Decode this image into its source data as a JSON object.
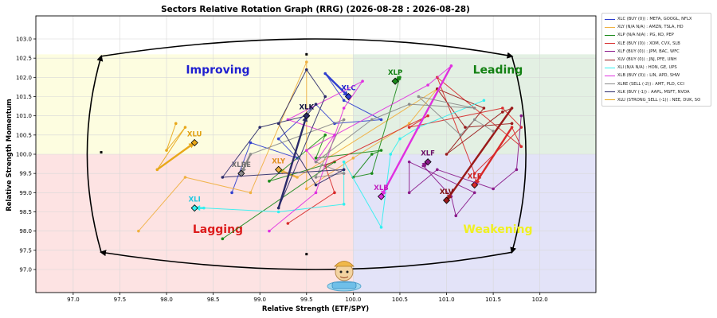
{
  "chart_data": {
    "type": "scatter",
    "title": "Sectors Relative Rotation Graph (RRG) (2026-08-28 : 2026-08-28)",
    "xlabel": "Relative Strength (ETF/SPY)",
    "ylabel": "Relative Strength Momentum",
    "xlim": [
      96.6,
      102.6
    ],
    "ylim": [
      96.4,
      103.6
    ],
    "xticks": [
      "97.0",
      "97.5",
      "98.0",
      "98.5",
      "99.0",
      "99.5",
      "100.0",
      "100.5",
      "101.0",
      "101.5",
      "102.0"
    ],
    "yticks": [
      "97.0",
      "97.5",
      "98.0",
      "98.5",
      "99.0",
      "99.5",
      "100.0",
      "100.5",
      "101.0",
      "101.5",
      "102.0",
      "102.5",
      "103.0"
    ],
    "grid": true,
    "legend_position": "outside-right",
    "quadrants": [
      {
        "label": "Improving",
        "label_color": "#1f1fd0",
        "fill": "#fdfde0"
      },
      {
        "label": "Leading",
        "label_color": "#128012",
        "fill": "#e3f0e3"
      },
      {
        "label": "Lagging",
        "label_color": "#dd1c1c",
        "fill": "#fde3e3"
      },
      {
        "label": "Weakening",
        "label_color": "#f0f020",
        "fill": "#e3e3f8"
      }
    ],
    "series": [
      {
        "name": "XLC (BUY (0)) : META, GOOGL, NFLX",
        "label": "XLC",
        "color": "#2f3fcf",
        "label_color": "#1f1fcf",
        "points": [
          [
            98.7,
            99.0
          ],
          [
            98.9,
            100.3
          ],
          [
            99.4,
            99.9
          ],
          [
            99.2,
            100.4
          ],
          [
            99.6,
            101.3
          ],
          [
            99.8,
            100.8
          ],
          [
            100.3,
            100.9
          ],
          [
            99.9,
            101.4
          ],
          [
            99.7,
            102.1
          ],
          [
            99.95,
            101.5
          ]
        ]
      },
      {
        "name": "XLY (N/A N/A) : AMZN, TSLA, HD",
        "label": "XLY",
        "color": "#f0b040",
        "label_color": "#e09020",
        "points": [
          [
            97.7,
            98.0
          ],
          [
            98.2,
            99.4
          ],
          [
            98.9,
            99.0
          ],
          [
            99.5,
            102.4
          ],
          [
            99.5,
            99.1
          ],
          [
            100.0,
            99.9
          ],
          [
            100.6,
            100.8
          ],
          [
            100.9,
            101.7
          ],
          [
            99.4,
            99.4
          ],
          [
            99.2,
            99.6
          ]
        ]
      },
      {
        "name": "XLP (N/A N/A) : PG, KO, PEP",
        "label": "XLP",
        "color": "#1a8a1a",
        "label_color": "#128012",
        "points": [
          [
            98.6,
            97.8
          ],
          [
            99.8,
            99.8
          ],
          [
            99.1,
            99.3
          ],
          [
            99.7,
            100.5
          ],
          [
            99.6,
            99.9
          ],
          [
            100.3,
            100.1
          ],
          [
            100.2,
            100.0
          ],
          [
            100.0,
            99.4
          ],
          [
            100.2,
            99.5
          ],
          [
            100.5,
            102.0
          ],
          [
            100.45,
            101.9
          ]
        ]
      },
      {
        "name": "XLE (BUY (0)) : XOM, CVX, SLB",
        "label": "XLE",
        "color": "#d82a2a",
        "label_color": "#cc2020",
        "points": [
          [
            99.3,
            98.2
          ],
          [
            99.8,
            99.0
          ],
          [
            99.7,
            99.7
          ],
          [
            100.8,
            101.0
          ],
          [
            100.6,
            100.7
          ],
          [
            101.6,
            101.2
          ],
          [
            101.8,
            100.7
          ],
          [
            101.3,
            99.5
          ],
          [
            100.9,
            102.0
          ],
          [
            101.8,
            100.2
          ],
          [
            101.7,
            100.7
          ],
          [
            101.3,
            99.2
          ]
        ]
      },
      {
        "name": "XLF (BUY (0)) : JPM, BAC, WFC",
        "label": "XLF",
        "color": "#8a1a8a",
        "label_color": "#6a106a",
        "points": [
          [
            101.8,
            101.0
          ],
          [
            101.75,
            99.6
          ],
          [
            101.5,
            99.1
          ],
          [
            100.9,
            99.6
          ],
          [
            100.6,
            99.0
          ],
          [
            100.6,
            99.8
          ],
          [
            101.3,
            99.0
          ],
          [
            101.1,
            98.4
          ],
          [
            101.05,
            98.9
          ],
          [
            100.75,
            99.7
          ],
          [
            100.8,
            99.8
          ]
        ]
      },
      {
        "name": "XLV (BUY (0)) : JNJ, PFE, UNH",
        "label": "XLV",
        "color": "#9a1a1a",
        "label_color": "#801010",
        "points": [
          [
            101.7,
            100.8
          ],
          [
            101.2,
            100.7
          ],
          [
            100.9,
            101.7
          ],
          [
            101.4,
            101.2
          ],
          [
            101.0,
            100.0
          ],
          [
            101.6,
            101.1
          ],
          [
            101.7,
            101.2
          ],
          [
            101.0,
            98.8
          ]
        ]
      },
      {
        "name": "XLI (N/A N/A) : HON, GE, UPS",
        "label": "XLI",
        "color": "#30f0f0",
        "label_color": "#20c8e0",
        "points": [
          [
            101.4,
            101.4
          ],
          [
            100.7,
            100.7
          ],
          [
            100.5,
            100.4
          ],
          [
            100.4,
            100.0
          ],
          [
            100.3,
            98.1
          ],
          [
            99.9,
            99.8
          ],
          [
            99.9,
            98.7
          ],
          [
            99.2,
            98.5
          ],
          [
            98.4,
            98.6
          ],
          [
            98.3,
            98.6
          ]
        ]
      },
      {
        "name": "XLB (BUY (0)) : LIN, APD, SHW",
        "label": "XLB",
        "color": "#e030e0",
        "label_color": "#c020c0",
        "points": [
          [
            99.1,
            98.0
          ],
          [
            99.6,
            99.0
          ],
          [
            99.9,
            101.2
          ],
          [
            100.1,
            101.9
          ],
          [
            99.3,
            100.9
          ],
          [
            99.8,
            100.5
          ],
          [
            99.6,
            99.8
          ],
          [
            99.5,
            100.1
          ],
          [
            100.8,
            101.8
          ],
          [
            101.05,
            102.3
          ],
          [
            100.3,
            98.9
          ]
        ]
      },
      {
        "name": "XLRE (SELL (-2)) : AMT, PLD, CCI",
        "label": "XLRE",
        "color": "#8a8a8a",
        "label_color": "#707070",
        "points": [
          [
            101.5,
            100.6
          ],
          [
            101.3,
            100.9
          ],
          [
            101.15,
            100.5
          ],
          [
            100.7,
            101.5
          ],
          [
            101.3,
            101.2
          ],
          [
            100.6,
            101.3
          ],
          [
            100.2,
            100.9
          ],
          [
            99.6,
            99.8
          ],
          [
            99.9,
            99.5
          ],
          [
            99.6,
            99.4
          ],
          [
            99.9,
            100.9
          ],
          [
            98.9,
            100.0
          ],
          [
            98.8,
            99.5
          ]
        ]
      },
      {
        "name": "XLK (BUY (-1)) : AAPL, MSFT, NVDA",
        "label": "XLK",
        "color": "#2a2a6a",
        "label_color": "#101040",
        "points": [
          [
            99.6,
            101.3
          ],
          [
            99.5,
            101.0
          ],
          [
            99.0,
            100.7
          ],
          [
            98.6,
            99.4
          ],
          [
            99.9,
            99.6
          ],
          [
            99.6,
            99.2
          ],
          [
            99.2,
            100.8
          ],
          [
            99.5,
            102.2
          ],
          [
            99.7,
            101.5
          ],
          [
            99.2,
            98.6
          ],
          [
            99.5,
            101.0
          ]
        ]
      },
      {
        "name": "XLU (STRONG_SELL (-1)) : NEE, DUK, SO",
        "label": "XLU",
        "color": "#e8a81a",
        "label_color": "#e0a010",
        "points": [
          [
            98.1,
            100.8
          ],
          [
            98.0,
            100.1
          ],
          [
            98.2,
            100.7
          ],
          [
            97.9,
            99.6
          ],
          [
            98.3,
            100.3
          ]
        ]
      }
    ],
    "markers": [
      {
        "label": "",
        "x": 97.3,
        "y": 100.05,
        "color": "#000000"
      },
      {
        "label": "",
        "x": 99.5,
        "y": 102.6,
        "color": "#000000"
      },
      {
        "label": "",
        "x": 99.5,
        "y": 97.4,
        "color": "#000000"
      }
    ]
  }
}
